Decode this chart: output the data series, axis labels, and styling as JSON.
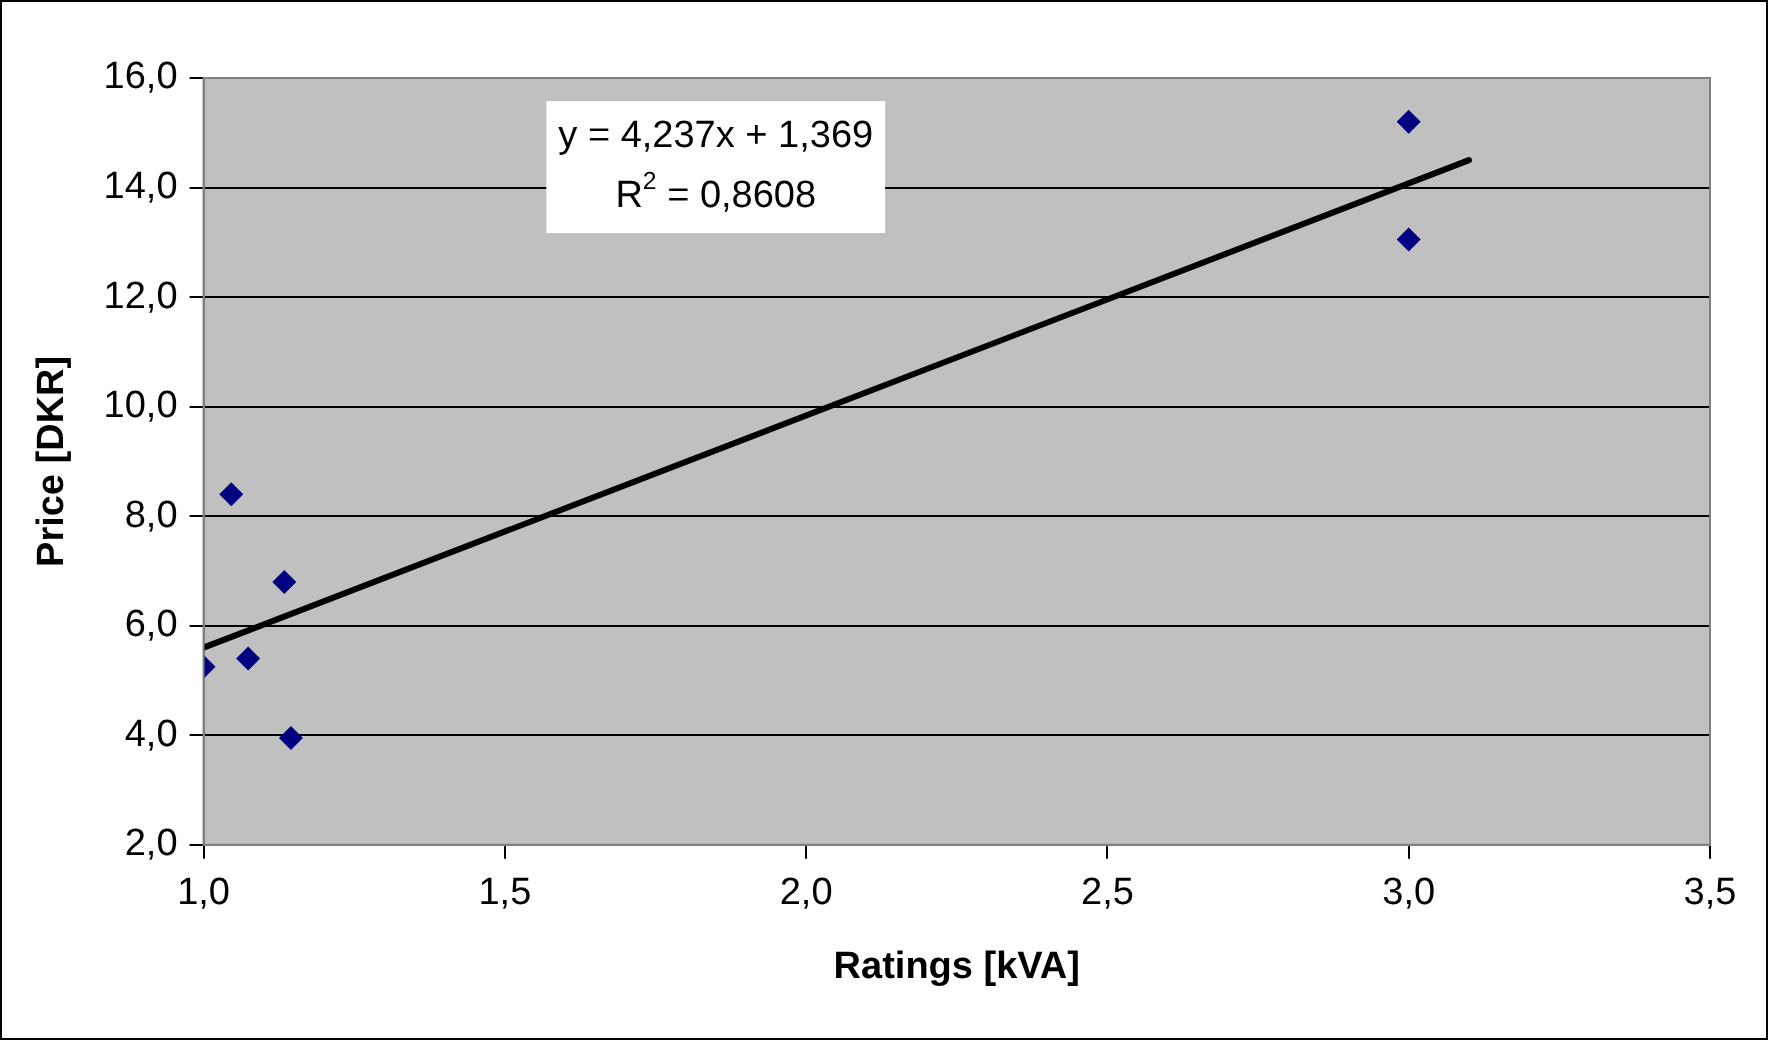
{
  "chart_data": {
    "type": "scatter",
    "xlabel": "Ratings [kVA]",
    "ylabel": "Price [DKR]",
    "annotations": [
      "y = 4,237x + 1,369",
      "R$^{2}$ = 0,8608"
    ],
    "series": [
      {
        "color": "#000080",
        "marker": "diamond",
        "x": [
          1.0,
          1.046,
          1.074,
          1.134,
          1.145,
          3.0,
          3.0
        ],
        "values": [
          5.25,
          8.4,
          5.4,
          6.8,
          3.95,
          15.2,
          13.05
        ]
      },
      {
        "type": "line",
        "color": "#000000",
        "marker": "none",
        "line_style": "solid",
        "x": [
          1.0,
          3.1
        ],
        "values": [
          5.6,
          14.5
        ]
      }
    ],
    "xlim": [
      1.0,
      3.5
    ],
    "xticks": [
      {
        "value": 1.0,
        "label": "1,0"
      },
      {
        "value": 1.5,
        "label": "1,5"
      },
      {
        "value": 2.0,
        "label": "2,0"
      },
      {
        "value": 2.5,
        "label": "2,5"
      },
      {
        "value": 3.0,
        "label": "3,0"
      },
      {
        "value": 3.5,
        "label": "3,5"
      }
    ],
    "ylim": [
      2.0,
      16.0
    ],
    "yticks": [
      {
        "value": 2.0,
        "label": "2,0"
      },
      {
        "value": 4.0,
        "label": "4,0"
      },
      {
        "value": 6.0,
        "label": "6,0"
      },
      {
        "value": 8.0,
        "label": "8,0"
      },
      {
        "value": 10.0,
        "label": "10,0"
      },
      {
        "value": 12.0,
        "label": "12,0"
      },
      {
        "value": 14.0,
        "label": "14,0"
      },
      {
        "value": 16.0,
        "label": "16,0"
      }
    ],
    "grid": "y",
    "legend": false
  }
}
